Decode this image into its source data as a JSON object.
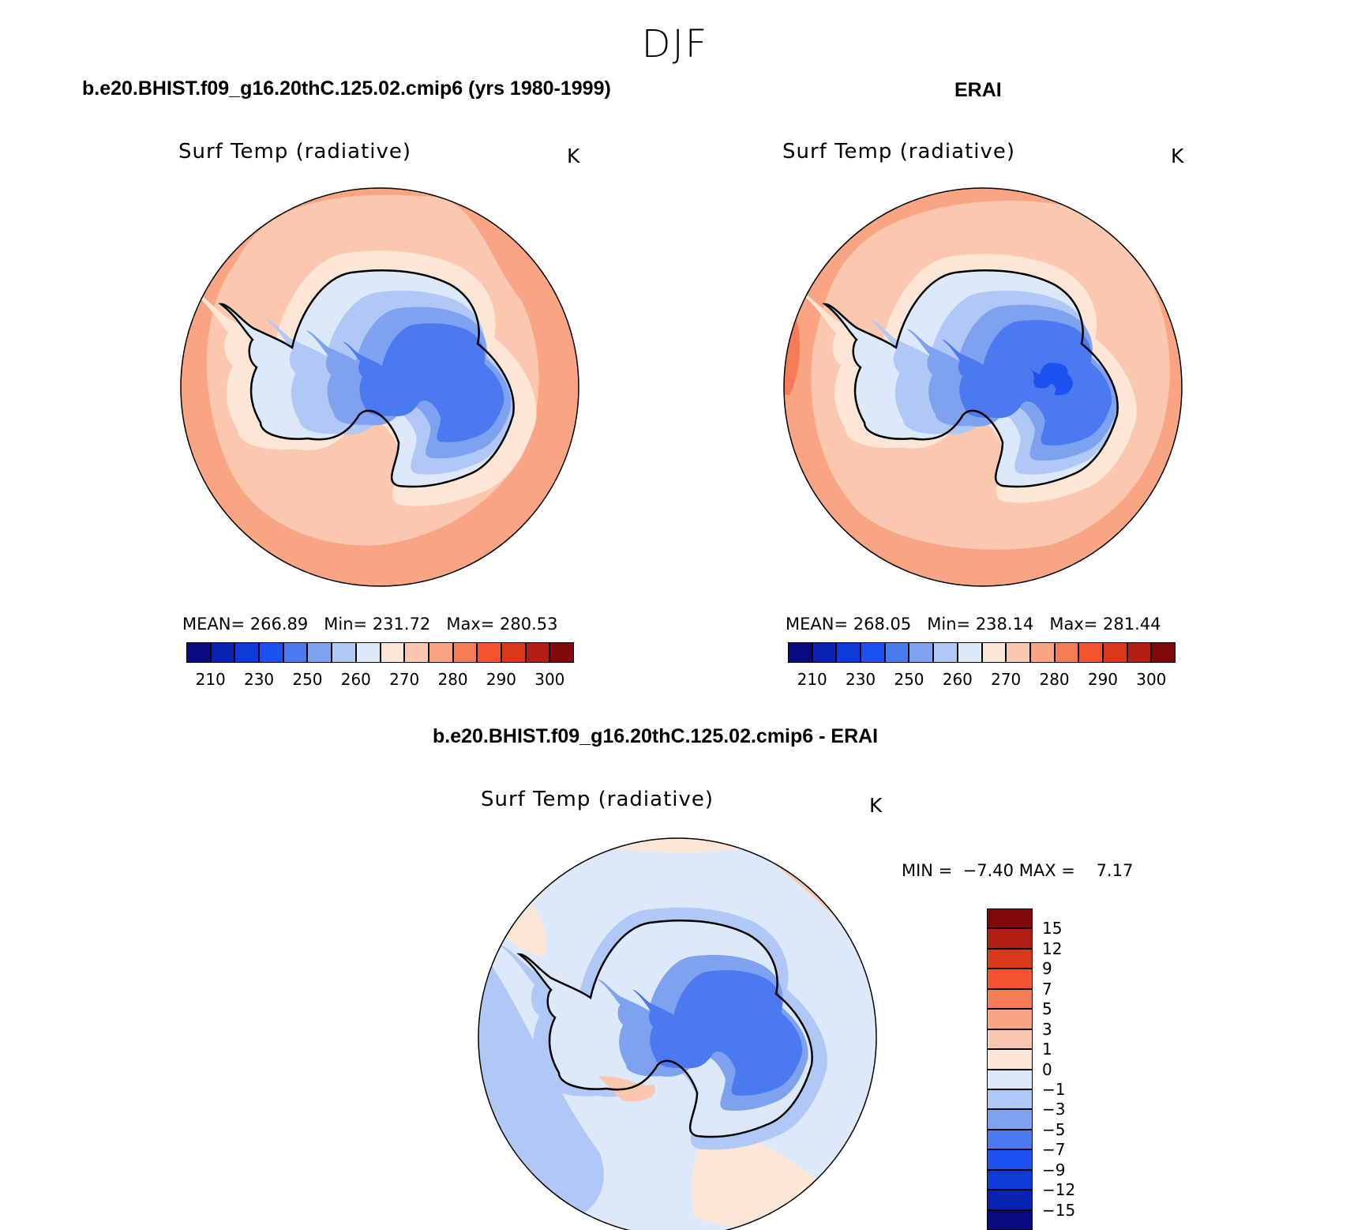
{
  "figure": {
    "season": "DJF",
    "variable": "Surf Temp (radiative)",
    "units": "K"
  },
  "panels": [
    {
      "title": "b.e20.BHIST.f09_g16.20thC.125.02.cmip6 (yrs 1980-1999)",
      "variable": "Surf Temp (radiative)",
      "units": "K",
      "stats": {
        "mean_label": "MEAN=",
        "mean": "266.89",
        "min_label": "Min=",
        "min": "231.72",
        "max_label": "Max=",
        "max": "280.53"
      }
    },
    {
      "title": "ERAI",
      "variable": "Surf Temp (radiative)",
      "units": "K",
      "stats": {
        "mean_label": "MEAN=",
        "mean": "268.05",
        "min_label": "Min=",
        "min": "238.14",
        "max_label": "Max=",
        "max": "281.44"
      }
    },
    {
      "title": "b.e20.BHIST.f09_g16.20thC.125.02.cmip6 - ERAI",
      "variable": "Surf Temp (radiative)",
      "units": "K",
      "stats": {
        "min_label": "MIN =",
        "min": "−7.40",
        "max_label": "MAX =",
        "max": "7.17"
      }
    }
  ],
  "colorbar_abs": {
    "ticks": [
      "210",
      "230",
      "250",
      "260",
      "270",
      "280",
      "290",
      "300"
    ],
    "colors": [
      "#0a0a80",
      "#0a22b0",
      "#0e3ad8",
      "#1c52f2",
      "#4b7af0",
      "#7ea2ef",
      "#b0c8f5",
      "#dce9fb",
      "#fde6d6",
      "#fbc7ae",
      "#f9a583",
      "#f57c56",
      "#f2552d",
      "#d9391b",
      "#b01f12",
      "#800808"
    ]
  },
  "colorbar_diff": {
    "ticks": [
      "15",
      "12",
      "9",
      "7",
      "5",
      "3",
      "1",
      "0",
      "−1",
      "−3",
      "−5",
      "−7",
      "−9",
      "−12",
      "−15"
    ],
    "colors": [
      "#800808",
      "#b01f12",
      "#d9391b",
      "#f2552d",
      "#f57c56",
      "#f9a583",
      "#fbc7ae",
      "#fde6d6",
      "#dce9fb",
      "#b0c8f5",
      "#7ea2ef",
      "#4b7af0",
      "#1c52f2",
      "#0e3ad8",
      "#0a22b0",
      "#0a0a80"
    ]
  }
}
